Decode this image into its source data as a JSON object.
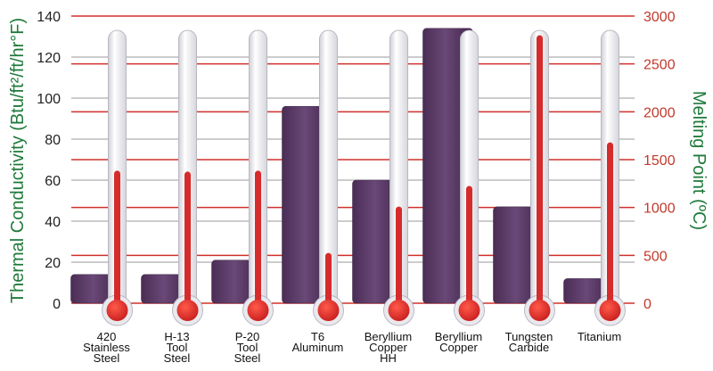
{
  "chart_data": {
    "type": "bar",
    "categories": [
      [
        "420",
        "Stainless",
        "Steel"
      ],
      [
        "H-13",
        "Tool",
        "Steel"
      ],
      [
        "P-20",
        "Tool",
        "Steel"
      ],
      [
        "T6",
        "Aluminum"
      ],
      [
        "Beryllium",
        "Copper",
        "HH"
      ],
      [
        "Beryllium",
        "Copper"
      ],
      [
        "Tungsten",
        "Carbide"
      ],
      [
        "Titanium"
      ]
    ],
    "series": [
      {
        "axis": "left",
        "kind": "bar",
        "color": "#5b3a66",
        "values": [
          14,
          14,
          21,
          96,
          60,
          134,
          47,
          12
        ]
      },
      {
        "axis": "right",
        "kind": "thermometer",
        "color": "#d62b2b",
        "values": [
          1385,
          1375,
          1385,
          525,
          1010,
          1225,
          2800,
          1680
        ]
      }
    ],
    "ylabel": "Thermal Conductivity (Btu/ft²/ft/hr°F)",
    "ylim": [
      0,
      140
    ],
    "yticks": [
      "0",
      "20",
      "40",
      "60",
      "80",
      "100",
      "120",
      "140"
    ],
    "y2label": "Melting Point (ºC)",
    "y2lim": [
      0,
      3000
    ],
    "y2ticks": [
      "0",
      "500",
      "1000",
      "1500",
      "2000",
      "2500",
      "3000"
    ],
    "grid": true,
    "grid_colors": {
      "left": "#9a9a9a",
      "right": "#d0302b"
    }
  }
}
